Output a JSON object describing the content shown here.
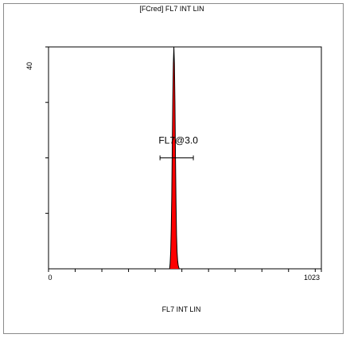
{
  "chart_data": {
    "type": "histogram",
    "title": "[FCred] FL7 INT LIN",
    "xlabel": "FL7 INT LIN",
    "ylabel": "",
    "xlim": [
      0,
      1023
    ],
    "ylim": [
      0,
      40
    ],
    "x_tick_labels": [
      {
        "value": 0,
        "label": "0"
      },
      {
        "value": 1023,
        "label": "1023"
      }
    ],
    "y_tick_labels": [
      {
        "value": 40,
        "label": "40"
      }
    ],
    "x_minor_ticks": [
      100,
      200,
      300,
      400,
      500,
      600,
      700,
      800,
      900,
      1000
    ],
    "y_minor_ticks": [
      10,
      20,
      30
    ],
    "fill_color": "#ff0000",
    "outline_color": "#000000",
    "x": [
      454,
      456,
      458,
      460,
      462,
      464,
      466,
      468,
      470,
      472,
      474,
      476,
      478,
      480,
      482,
      484,
      486,
      488,
      490
    ],
    "counts": [
      0,
      1,
      3,
      7,
      13,
      22,
      31,
      37,
      40,
      37,
      30,
      20,
      12,
      6,
      3,
      1.5,
      0.7,
      0.3,
      0
    ],
    "gates": [
      {
        "name": "FL7@3.0",
        "x_start": 418,
        "x_end": 543,
        "y": 20
      }
    ],
    "grid": false,
    "legend": "none"
  }
}
